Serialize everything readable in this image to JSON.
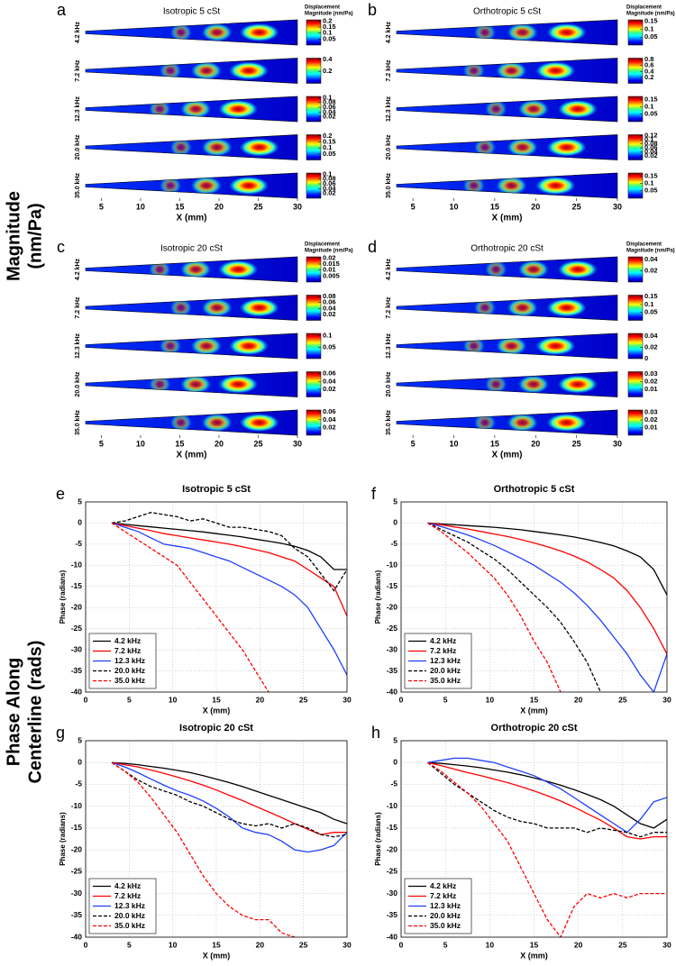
{
  "figure": {
    "magnitude_label": [
      "Magnitude",
      "(nm/Pa)"
    ],
    "phase_label": [
      "Phase Along",
      "Centerline (rads)"
    ]
  },
  "chart_data": [
    {
      "type": "heatmap",
      "panel": "a",
      "title": "Isotropic 5 cSt",
      "xlabel": "X (mm)",
      "xlim": [
        3,
        30
      ],
      "xticks": [
        5,
        10,
        15,
        20,
        25,
        30
      ],
      "colorbar_label": [
        "Displacement",
        "Magnitude (nm/Pa)"
      ],
      "colormap": "jet",
      "rows": [
        {
          "label": "4.2 kHz",
          "clim": [
            0,
            0.21
          ],
          "cticks": [
            0.05,
            0.1,
            0.15,
            0.2
          ]
        },
        {
          "label": "7.2 kHz",
          "clim": [
            0,
            0.42
          ],
          "cticks": [
            0.2,
            0.4
          ]
        },
        {
          "label": "12.3 kHz",
          "clim": [
            0,
            0.105
          ],
          "cticks": [
            0.02,
            0.04,
            0.06,
            0.08,
            0.1
          ]
        },
        {
          "label": "20.0 kHz",
          "clim": [
            0,
            0.21
          ],
          "cticks": [
            0.05,
            0.1,
            0.15,
            0.2
          ]
        },
        {
          "label": "35.0 kHz",
          "clim": [
            0,
            0.105
          ],
          "cticks": [
            0.02,
            0.04,
            0.06,
            0.08,
            0.1
          ]
        }
      ]
    },
    {
      "type": "heatmap",
      "panel": "b",
      "title": "Orthotropic 5 cSt",
      "xlabel": "X (mm)",
      "xlim": [
        3,
        30
      ],
      "xticks": [
        5,
        10,
        15,
        20,
        25,
        30
      ],
      "colorbar_label": [
        "Displacement",
        "Magnitude (nm/Pa)"
      ],
      "colormap": "jet",
      "rows": [
        {
          "label": "4.2 kHz",
          "clim": [
            0,
            0.16
          ],
          "cticks": [
            0.05,
            0.1,
            0.15
          ]
        },
        {
          "label": "7.2 kHz",
          "clim": [
            0,
            0.85
          ],
          "cticks": [
            0.2,
            0.4,
            0.6,
            0.8
          ]
        },
        {
          "label": "12.3 kHz",
          "clim": [
            0,
            0.17
          ],
          "cticks": [
            0.05,
            0.1,
            0.15
          ]
        },
        {
          "label": "20.0 kHz",
          "clim": [
            0,
            0.125
          ],
          "cticks": [
            0.02,
            0.04,
            0.06,
            0.08,
            0.1,
            0.12
          ]
        },
        {
          "label": "35.0 kHz",
          "clim": [
            0,
            0.17
          ],
          "cticks": [
            0.05,
            0.1,
            0.15
          ]
        }
      ]
    },
    {
      "type": "heatmap",
      "panel": "c",
      "title": "Isotropic 20 cSt",
      "xlabel": "X (mm)",
      "xlim": [
        3,
        30
      ],
      "xticks": [
        5,
        10,
        15,
        20,
        25,
        30
      ],
      "colorbar_label": [
        "Displacement",
        "Magnitude (nm/Pa)"
      ],
      "colormap": "jet",
      "rows": [
        {
          "label": "4.2 kHz",
          "clim": [
            0,
            0.021
          ],
          "cticks": [
            0.005,
            0.01,
            0.015,
            0.02
          ]
        },
        {
          "label": "7.2 kHz",
          "clim": [
            0,
            0.085
          ],
          "cticks": [
            0.02,
            0.04,
            0.06,
            0.08
          ]
        },
        {
          "label": "12.3 kHz",
          "clim": [
            0,
            0.11
          ],
          "cticks": [
            0.05,
            0.1
          ]
        },
        {
          "label": "20.0 kHz",
          "clim": [
            0,
            0.065
          ],
          "cticks": [
            0.02,
            0.04,
            0.06
          ]
        },
        {
          "label": "35.0 kHz",
          "clim": [
            0,
            0.065
          ],
          "cticks": [
            0.02,
            0.04,
            0.06
          ]
        }
      ]
    },
    {
      "type": "heatmap",
      "panel": "d",
      "title": "Orthotropic 20 cSt",
      "xlabel": "X (mm)",
      "xlim": [
        3,
        30
      ],
      "xticks": [
        5,
        10,
        15,
        20,
        25,
        30
      ],
      "colorbar_label": [
        "Displacement",
        "Magnitude (nm/Pa)"
      ],
      "colormap": "jet",
      "rows": [
        {
          "label": "4.2 kHz",
          "clim": [
            0,
            0.045
          ],
          "cticks": [
            0.02,
            0.04
          ]
        },
        {
          "label": "7.2 kHz",
          "clim": [
            0,
            0.16
          ],
          "cticks": [
            0.05,
            0.1,
            0.15
          ]
        },
        {
          "label": "12.3 kHz",
          "clim": [
            0,
            0.045
          ],
          "cticks": [
            0,
            0.02,
            0.04
          ]
        },
        {
          "label": "20.0 kHz",
          "clim": [
            0,
            0.033
          ],
          "cticks": [
            0.01,
            0.02,
            0.03
          ]
        },
        {
          "label": "35.0 kHz",
          "clim": [
            0,
            0.033
          ],
          "cticks": [
            0.01,
            0.02,
            0.03
          ]
        }
      ]
    },
    {
      "type": "line",
      "panel": "e",
      "title": "Isotropic 5 cSt",
      "xlabel": "X (mm)",
      "ylabel": "Phase (radians)",
      "xlim": [
        0,
        30
      ],
      "ylim": [
        -40,
        5
      ],
      "xticks": [
        0,
        5,
        10,
        15,
        20,
        25,
        30
      ],
      "yticks": [
        -40,
        -35,
        -30,
        -25,
        -20,
        -15,
        -10,
        -5,
        0,
        5
      ],
      "grid": true,
      "legend": "lower-left",
      "x": [
        3,
        4.5,
        6,
        7.5,
        9,
        10.5,
        12,
        13.5,
        15,
        16.5,
        18,
        19.5,
        21,
        22.5,
        24,
        25.5,
        27,
        28.5,
        30
      ],
      "series": [
        {
          "name": "4.2 kHz",
          "color": "#000000",
          "dashed": false,
          "values": [
            0,
            -0.3,
            -0.6,
            -0.9,
            -1.2,
            -1.5,
            -1.8,
            -2.1,
            -2.5,
            -2.9,
            -3.3,
            -3.8,
            -4.3,
            -4.8,
            -5.5,
            -6.5,
            -8,
            -11,
            -11
          ]
        },
        {
          "name": "7.2 kHz",
          "color": "#ff0000",
          "dashed": false,
          "values": [
            0,
            -0.6,
            -1.2,
            -1.8,
            -2.5,
            -3,
            -3.5,
            -4,
            -4.5,
            -5,
            -5.6,
            -6.3,
            -7,
            -8,
            -9,
            -11,
            -13,
            -15,
            -22
          ]
        },
        {
          "name": "12.3 kHz",
          "color": "#1f3fff",
          "dashed": false,
          "values": [
            0,
            -1,
            -2,
            -3.5,
            -5,
            -5.5,
            -6,
            -7,
            -8,
            -9,
            -10.5,
            -12,
            -13.5,
            -15,
            -17,
            -20,
            -25,
            -30,
            -36
          ]
        },
        {
          "name": "20.0 kHz",
          "color": "#000000",
          "dashed": true,
          "values": [
            0,
            0.5,
            1.5,
            2.5,
            2,
            1.5,
            0.5,
            1,
            0,
            -1,
            -1,
            -1.5,
            -2,
            -3,
            -6,
            -8,
            -12,
            -16,
            -11
          ]
        },
        {
          "name": "35.0 kHz",
          "color": "#ff0000",
          "dashed": true,
          "values": [
            0,
            -2,
            -4,
            -6,
            -8,
            -10,
            -14,
            -18,
            -22,
            -26,
            -30,
            -35,
            -40,
            null,
            null,
            null,
            null,
            null,
            null
          ]
        }
      ]
    },
    {
      "type": "line",
      "panel": "f",
      "title": "Orthotropic 5 cSt",
      "xlabel": "X (mm)",
      "ylabel": "Phase (radians)",
      "xlim": [
        0,
        30
      ],
      "ylim": [
        -40,
        5
      ],
      "xticks": [
        0,
        5,
        10,
        15,
        20,
        25,
        30
      ],
      "yticks": [
        -40,
        -35,
        -30,
        -25,
        -20,
        -15,
        -10,
        -5,
        0,
        5
      ],
      "grid": true,
      "legend": "lower-left",
      "x": [
        3,
        4.5,
        6,
        7.5,
        9,
        10.5,
        12,
        13.5,
        15,
        16.5,
        18,
        19.5,
        21,
        22.5,
        24,
        25.5,
        27,
        28.5,
        30
      ],
      "series": [
        {
          "name": "4.2 kHz",
          "color": "#000000",
          "dashed": false,
          "values": [
            0,
            -0.2,
            -0.4,
            -0.6,
            -0.8,
            -1,
            -1.3,
            -1.6,
            -2,
            -2.4,
            -2.8,
            -3.3,
            -3.9,
            -4.6,
            -5.4,
            -6.6,
            -8,
            -11,
            -17
          ]
        },
        {
          "name": "7.2 kHz",
          "color": "#ff0000",
          "dashed": false,
          "values": [
            0,
            -0.4,
            -0.9,
            -1.4,
            -2,
            -2.6,
            -3.2,
            -3.9,
            -4.7,
            -5.6,
            -6.6,
            -7.8,
            -9.2,
            -11,
            -13,
            -16,
            -20,
            -25,
            -31
          ]
        },
        {
          "name": "12.3 kHz",
          "color": "#1f3fff",
          "dashed": false,
          "values": [
            0,
            -0.8,
            -1.8,
            -2.8,
            -4,
            -5.3,
            -6.8,
            -8.3,
            -10,
            -12,
            -14,
            -16.5,
            -19.5,
            -23,
            -27,
            -31,
            -36,
            -40,
            -31
          ]
        },
        {
          "name": "20.0 kHz",
          "color": "#000000",
          "dashed": true,
          "values": [
            0,
            -1.5,
            -3,
            -4.5,
            -6.5,
            -8.5,
            -11,
            -14,
            -17,
            -20,
            -23.5,
            -28,
            -33,
            -40,
            null,
            null,
            null,
            null,
            null
          ]
        },
        {
          "name": "35.0 kHz",
          "color": "#ff0000",
          "dashed": true,
          "values": [
            0,
            -2,
            -4.5,
            -7,
            -10,
            -13,
            -17,
            -22,
            -28,
            -33,
            -40,
            null,
            null,
            null,
            null,
            null,
            null,
            null,
            null
          ]
        }
      ]
    },
    {
      "type": "line",
      "panel": "g",
      "title": "Isotropic 20 cSt",
      "xlabel": "X (mm)",
      "ylabel": "Phase (radians)",
      "xlim": [
        0,
        30
      ],
      "ylim": [
        -40,
        5
      ],
      "xticks": [
        0,
        5,
        10,
        15,
        20,
        25,
        30
      ],
      "yticks": [
        -40,
        -35,
        -30,
        -25,
        -20,
        -15,
        -10,
        -5,
        0,
        5
      ],
      "grid": true,
      "legend": "lower-left",
      "x": [
        3,
        4.5,
        6,
        7.5,
        9,
        10.5,
        12,
        13.5,
        15,
        16.5,
        18,
        19.5,
        21,
        22.5,
        24,
        25.5,
        27,
        28.5,
        30
      ],
      "series": [
        {
          "name": "4.2 kHz",
          "color": "#000000",
          "dashed": false,
          "values": [
            0,
            -0.2,
            -0.5,
            -0.9,
            -1.3,
            -1.8,
            -2.3,
            -3,
            -3.8,
            -4.6,
            -5.5,
            -6.5,
            -7.5,
            -8.5,
            -9.5,
            -10.5,
            -11.5,
            -13,
            -14
          ]
        },
        {
          "name": "7.2 kHz",
          "color": "#ff0000",
          "dashed": false,
          "values": [
            0,
            -0.5,
            -1,
            -1.7,
            -2.5,
            -3.3,
            -4.2,
            -5.2,
            -6.3,
            -7.5,
            -8.7,
            -10,
            -11.3,
            -12.6,
            -14,
            -15.3,
            -16.5,
            -16,
            -16
          ]
        },
        {
          "name": "12.3 kHz",
          "color": "#1f3fff",
          "dashed": false,
          "values": [
            0,
            -1,
            -2.3,
            -3.8,
            -5.2,
            -6.5,
            -7.5,
            -8.8,
            -10.5,
            -12.5,
            -15,
            -16,
            -16.5,
            -18,
            -20,
            -20.5,
            -20,
            -19,
            -16
          ]
        },
        {
          "name": "20.0 kHz",
          "color": "#000000",
          "dashed": true,
          "values": [
            0,
            -2,
            -4,
            -5.5,
            -6.5,
            -7.5,
            -9,
            -10,
            -11.5,
            -13,
            -14,
            -14.5,
            -14,
            -15,
            -14,
            -15,
            -16.5,
            -17,
            -16.5
          ]
        },
        {
          "name": "35.0 kHz",
          "color": "#ff0000",
          "dashed": true,
          "values": [
            0,
            -2,
            -4.5,
            -8,
            -12,
            -16,
            -21,
            -26,
            -30,
            -33,
            -35,
            -36,
            -36,
            -39,
            -40,
            null,
            null,
            null,
            null
          ]
        }
      ]
    },
    {
      "type": "line",
      "panel": "h",
      "title": "Orthotropic 20 cSt",
      "xlabel": "X (mm)",
      "ylabel": "Phase (radians)",
      "xlim": [
        0,
        30
      ],
      "ylim": [
        -40,
        5
      ],
      "xticks": [
        0,
        5,
        10,
        15,
        20,
        25,
        30
      ],
      "yticks": [
        -40,
        -35,
        -30,
        -25,
        -20,
        -15,
        -10,
        -5,
        0,
        5
      ],
      "grid": true,
      "legend": "lower-left",
      "x": [
        3,
        4.5,
        6,
        7.5,
        9,
        10.5,
        12,
        13.5,
        15,
        16.5,
        18,
        19.5,
        21,
        22.5,
        24,
        25.5,
        27,
        28.5,
        30
      ],
      "series": [
        {
          "name": "4.2 kHz",
          "color": "#000000",
          "dashed": false,
          "values": [
            0,
            -0.2,
            -0.5,
            -0.8,
            -1.2,
            -1.7,
            -2.2,
            -2.8,
            -3.5,
            -4.3,
            -5.2,
            -6.2,
            -7.3,
            -8.5,
            -10,
            -12,
            -14,
            -15,
            -13
          ]
        },
        {
          "name": "7.2 kHz",
          "color": "#ff0000",
          "dashed": false,
          "values": [
            0,
            -0.7,
            -1.5,
            -2.3,
            -3,
            -3.8,
            -4.6,
            -5.5,
            -6.5,
            -7.6,
            -8.8,
            -10.2,
            -11.7,
            -13.2,
            -15,
            -17,
            -17.5,
            -17,
            -17
          ]
        },
        {
          "name": "12.3 kHz",
          "color": "#1f3fff",
          "dashed": false,
          "values": [
            0,
            0.5,
            1,
            1,
            0.5,
            0,
            -1,
            -2,
            -3,
            -4.5,
            -6,
            -8,
            -10,
            -12,
            -14,
            -16,
            -13,
            -9,
            -8
          ]
        },
        {
          "name": "20.0 kHz",
          "color": "#000000",
          "dashed": true,
          "values": [
            0,
            -2.5,
            -5,
            -7,
            -9,
            -11,
            -12.5,
            -13.5,
            -14,
            -15,
            -15,
            -15,
            -16,
            -15,
            -15.5,
            -16,
            -17,
            -16,
            -16
          ]
        },
        {
          "name": "35.0 kHz",
          "color": "#ff0000",
          "dashed": true,
          "values": [
            0,
            -2,
            -4.5,
            -7,
            -10,
            -14,
            -18,
            -24,
            -30,
            -36,
            -40,
            -33,
            -30,
            -31,
            -30,
            -31,
            -30,
            -30,
            -30
          ]
        }
      ]
    }
  ]
}
